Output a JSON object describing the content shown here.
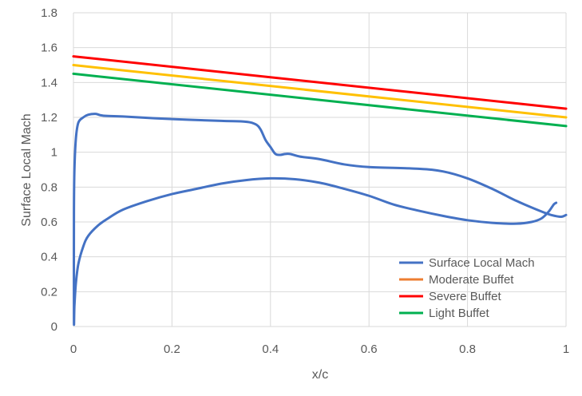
{
  "chart_data": {
    "type": "line",
    "title": "",
    "xlabel": "x/c",
    "ylabel": "Surface Local Mach",
    "xlim": [
      0,
      1
    ],
    "ylim": [
      0,
      1.8
    ],
    "x_ticks": [
      "0",
      "0.2",
      "0.4",
      "0.6",
      "0.8",
      "1"
    ],
    "y_ticks": [
      "0",
      "0.2",
      "0.4",
      "0.6",
      "0.8",
      "1",
      "1.2",
      "1.4",
      "1.6",
      "1.8"
    ],
    "grid": "horizontal and vertical",
    "legend_position": "bottom-right",
    "series": [
      {
        "name": "Surface Local Mach",
        "color": "#4472C4",
        "points": [
          [
            0.98,
            0.71
          ],
          [
            0.975,
            0.7
          ],
          [
            0.965,
            0.66
          ],
          [
            0.95,
            0.62
          ],
          [
            0.93,
            0.6
          ],
          [
            0.9,
            0.59
          ],
          [
            0.85,
            0.595
          ],
          [
            0.8,
            0.61
          ],
          [
            0.75,
            0.635
          ],
          [
            0.7,
            0.665
          ],
          [
            0.65,
            0.7
          ],
          [
            0.6,
            0.75
          ],
          [
            0.55,
            0.79
          ],
          [
            0.5,
            0.825
          ],
          [
            0.45,
            0.845
          ],
          [
            0.4,
            0.85
          ],
          [
            0.35,
            0.84
          ],
          [
            0.3,
            0.82
          ],
          [
            0.25,
            0.79
          ],
          [
            0.2,
            0.76
          ],
          [
            0.15,
            0.72
          ],
          [
            0.1,
            0.67
          ],
          [
            0.07,
            0.62
          ],
          [
            0.05,
            0.58
          ],
          [
            0.03,
            0.52
          ],
          [
            0.02,
            0.46
          ],
          [
            0.01,
            0.36
          ],
          [
            0.005,
            0.25
          ],
          [
            0.002,
            0.12
          ],
          [
            0.001,
            0.04
          ],
          [
            0.001,
            0.65
          ],
          [
            0.002,
            0.9
          ],
          [
            0.005,
            1.08
          ],
          [
            0.01,
            1.17
          ],
          [
            0.02,
            1.2
          ],
          [
            0.03,
            1.215
          ],
          [
            0.045,
            1.22
          ],
          [
            0.06,
            1.21
          ],
          [
            0.1,
            1.205
          ],
          [
            0.2,
            1.19
          ],
          [
            0.3,
            1.18
          ],
          [
            0.35,
            1.175
          ],
          [
            0.37,
            1.16
          ],
          [
            0.38,
            1.13
          ],
          [
            0.39,
            1.07
          ],
          [
            0.4,
            1.03
          ],
          [
            0.41,
            0.99
          ],
          [
            0.42,
            0.985
          ],
          [
            0.43,
            0.99
          ],
          [
            0.44,
            0.99
          ],
          [
            0.46,
            0.975
          ],
          [
            0.5,
            0.96
          ],
          [
            0.55,
            0.93
          ],
          [
            0.6,
            0.915
          ],
          [
            0.7,
            0.905
          ],
          [
            0.75,
            0.89
          ],
          [
            0.8,
            0.85
          ],
          [
            0.85,
            0.79
          ],
          [
            0.9,
            0.72
          ],
          [
            0.95,
            0.66
          ],
          [
            0.97,
            0.64
          ],
          [
            0.99,
            0.63
          ],
          [
            1.0,
            0.64
          ]
        ]
      },
      {
        "name": "Moderate Buffet",
        "color": "#FFC000",
        "legend_color": "#ED7D31",
        "points": [
          [
            0,
            1.5
          ],
          [
            1,
            1.2
          ]
        ]
      },
      {
        "name": "Severe Buffet",
        "color": "#FF0000",
        "points": [
          [
            0,
            1.55
          ],
          [
            1,
            1.25
          ]
        ]
      },
      {
        "name": "Light Buffet",
        "color": "#00B050",
        "points": [
          [
            0,
            1.45
          ],
          [
            1,
            1.15
          ]
        ]
      }
    ]
  }
}
